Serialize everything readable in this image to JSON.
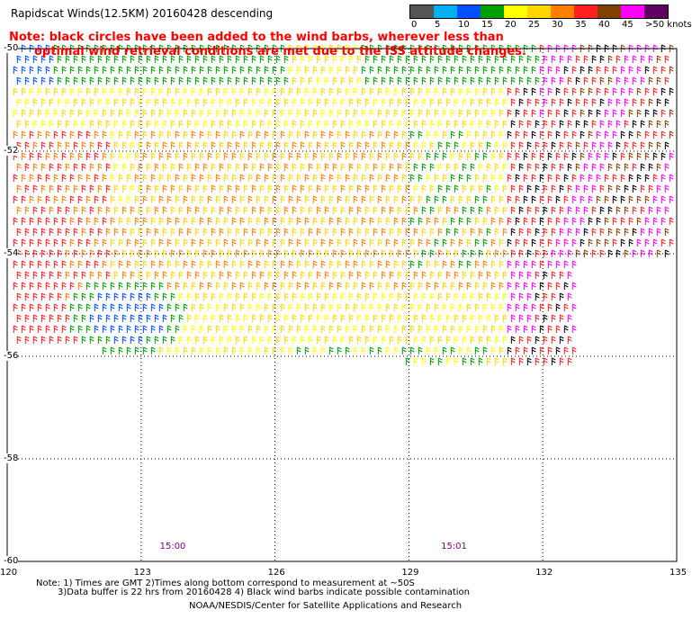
{
  "title": "Rapidscat Winds(12.5KM) 20160428 descending",
  "note": {
    "line1": "Note: black circles have been added to the wind barbs, wherever less than",
    "line2": "optimal wind retrieval conditions are met due to the ISS attitude changes."
  },
  "legend": {
    "labels": [
      "0",
      "5",
      "10",
      "15",
      "20",
      "25",
      "30",
      "35",
      "40",
      "45",
      ">50 knots"
    ],
    "colors": [
      "#555555",
      "#00b0f0",
      "#0050ff",
      "#00a000",
      "#ffff00",
      "#ffd700",
      "#ff8000",
      "#ff2020",
      "#804000",
      "#ff00ff",
      "#600060"
    ]
  },
  "axes": {
    "x_ticks": [
      "120",
      "123",
      "126",
      "129",
      "132",
      "135"
    ],
    "y_ticks": [
      "-50",
      "-52",
      "-54",
      "-56",
      "-58",
      "-60"
    ],
    "x_range": [
      120,
      135
    ],
    "y_range": [
      -60,
      -50
    ],
    "grid": "dotted"
  },
  "time_labels": [
    {
      "text": "15:00",
      "lon": 123.5
    },
    {
      "text": "15:01",
      "lon": 129.8
    }
  ],
  "footer": {
    "line1": "Note: 1) Times are GMT 2)Times along bottom correspond to measurement at ~50S",
    "line2": "3)Data buffer is 22 hrs from 20160428 4) Black wind barbs indicate possible contamination",
    "credit": "NOAA/NESDIS/Center for Satellite Applications and Research"
  }
}
